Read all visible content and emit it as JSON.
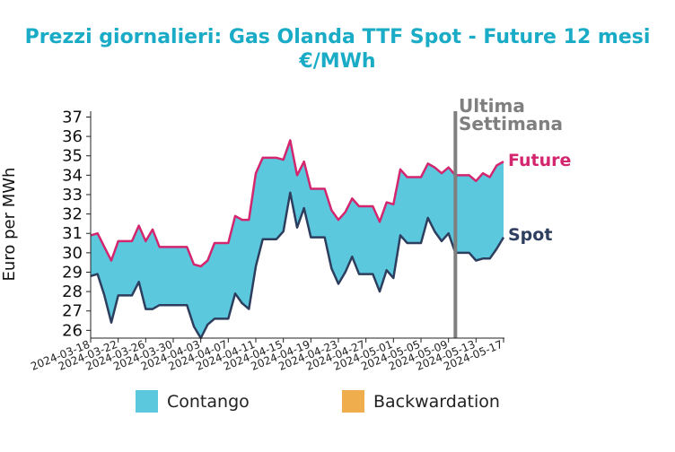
{
  "chart_data": {
    "type": "line",
    "title": "Prezzi giornalieri: Gas Olanda TTF Spot - Future 12 mesi",
    "subtitle": "€/MWh",
    "ylabel": "Euro per MWh",
    "xlabel": "",
    "ylim": [
      25.6,
      37.3
    ],
    "y_ticks": [
      26,
      27,
      28,
      29,
      30,
      31,
      32,
      33,
      34,
      35,
      36,
      37
    ],
    "x_start": "2024-03-18",
    "x_end": "2024-05-17",
    "x_tick_labels": [
      "2024-03-18",
      "2024-03-22",
      "2024-03-26",
      "2024-03-30",
      "2024-04-03",
      "2024-04-07",
      "2024-04-11",
      "2024-04-15",
      "2024-04-19",
      "2024-04-23",
      "2024-04-27",
      "2024-05-01",
      "2024-05-05",
      "2024-05-09",
      "2024-05-13",
      "2024-05-17"
    ],
    "annotation": {
      "text_line1": "Ultima",
      "text_line2": "Settimana",
      "x": "2024-05-10"
    },
    "grid": false,
    "colors": {
      "title": "#1aabc6",
      "future": "#d4266f",
      "spot": "#2d3e5e",
      "contango": "#5bc8de",
      "backwardation": "#f0ad4e",
      "annotation": "#7f7f7f"
    },
    "series": [
      {
        "name": "Future",
        "x": [
          "2024-03-18",
          "2024-03-19",
          "2024-03-20",
          "2024-03-21",
          "2024-03-22",
          "2024-03-23",
          "2024-03-24",
          "2024-03-25",
          "2024-03-26",
          "2024-03-27",
          "2024-03-28",
          "2024-03-29",
          "2024-03-30",
          "2024-03-31",
          "2024-04-01",
          "2024-04-02",
          "2024-04-03",
          "2024-04-04",
          "2024-04-05",
          "2024-04-06",
          "2024-04-07",
          "2024-04-08",
          "2024-04-09",
          "2024-04-10",
          "2024-04-11",
          "2024-04-12",
          "2024-04-13",
          "2024-04-14",
          "2024-04-15",
          "2024-04-16",
          "2024-04-17",
          "2024-04-18",
          "2024-04-19",
          "2024-04-20",
          "2024-04-21",
          "2024-04-22",
          "2024-04-23",
          "2024-04-24",
          "2024-04-25",
          "2024-04-26",
          "2024-04-27",
          "2024-04-28",
          "2024-04-29",
          "2024-04-30",
          "2024-05-01",
          "2024-05-02",
          "2024-05-03",
          "2024-05-04",
          "2024-05-05",
          "2024-05-06",
          "2024-05-07",
          "2024-05-08",
          "2024-05-09",
          "2024-05-10",
          "2024-05-11",
          "2024-05-12",
          "2024-05-13",
          "2024-05-14",
          "2024-05-15",
          "2024-05-16",
          "2024-05-17"
        ],
        "values": [
          30.9,
          31.0,
          30.3,
          29.6,
          30.6,
          30.6,
          30.6,
          31.4,
          30.6,
          31.2,
          30.3,
          30.3,
          30.3,
          30.3,
          30.3,
          29.4,
          29.3,
          29.6,
          30.5,
          30.5,
          30.5,
          31.9,
          31.7,
          31.7,
          34.1,
          34.9,
          34.9,
          34.9,
          34.8,
          35.8,
          34.0,
          34.7,
          33.3,
          33.3,
          33.3,
          32.2,
          31.7,
          32.1,
          32.8,
          32.4,
          32.4,
          32.4,
          31.6,
          32.6,
          32.5,
          34.3,
          33.9,
          33.9,
          33.9,
          34.6,
          34.4,
          34.1,
          34.4,
          34.0,
          34.0,
          34.0,
          33.7,
          34.1,
          33.9,
          34.5,
          34.7
        ]
      },
      {
        "name": "Spot",
        "x": [
          "2024-03-18",
          "2024-03-19",
          "2024-03-20",
          "2024-03-21",
          "2024-03-22",
          "2024-03-23",
          "2024-03-24",
          "2024-03-25",
          "2024-03-26",
          "2024-03-27",
          "2024-03-28",
          "2024-03-29",
          "2024-03-30",
          "2024-03-31",
          "2024-04-01",
          "2024-04-02",
          "2024-04-03",
          "2024-04-04",
          "2024-04-05",
          "2024-04-06",
          "2024-04-07",
          "2024-04-08",
          "2024-04-09",
          "2024-04-10",
          "2024-04-11",
          "2024-04-12",
          "2024-04-13",
          "2024-04-14",
          "2024-04-15",
          "2024-04-16",
          "2024-04-17",
          "2024-04-18",
          "2024-04-19",
          "2024-04-20",
          "2024-04-21",
          "2024-04-22",
          "2024-04-23",
          "2024-04-24",
          "2024-04-25",
          "2024-04-26",
          "2024-04-27",
          "2024-04-28",
          "2024-04-29",
          "2024-04-30",
          "2024-05-01",
          "2024-05-02",
          "2024-05-03",
          "2024-05-04",
          "2024-05-05",
          "2024-05-06",
          "2024-05-07",
          "2024-05-08",
          "2024-05-09",
          "2024-05-10",
          "2024-05-11",
          "2024-05-12",
          "2024-05-13",
          "2024-05-14",
          "2024-05-15",
          "2024-05-16",
          "2024-05-17"
        ],
        "values": [
          28.8,
          28.9,
          27.8,
          26.4,
          27.8,
          27.8,
          27.8,
          28.5,
          27.1,
          27.1,
          27.3,
          27.3,
          27.3,
          27.3,
          27.3,
          26.2,
          25.6,
          26.3,
          26.6,
          26.6,
          26.6,
          27.9,
          27.4,
          27.1,
          29.3,
          30.7,
          30.7,
          30.7,
          31.1,
          33.1,
          31.3,
          32.3,
          30.8,
          30.8,
          30.8,
          29.2,
          28.4,
          29.0,
          29.8,
          28.9,
          28.9,
          28.9,
          28.0,
          29.1,
          28.7,
          30.9,
          30.5,
          30.5,
          30.5,
          31.8,
          31.1,
          30.6,
          31.0,
          30.0,
          30.0,
          30.0,
          29.6,
          29.7,
          29.7,
          30.2,
          30.8
        ]
      }
    ],
    "series_labels": {
      "future": "Future",
      "spot": "Spot"
    },
    "legend": {
      "position": "bottom",
      "items": [
        {
          "label": "Contango",
          "color": "#5bc8de"
        },
        {
          "label": "Backwardation",
          "color": "#f0ad4e"
        }
      ]
    }
  }
}
